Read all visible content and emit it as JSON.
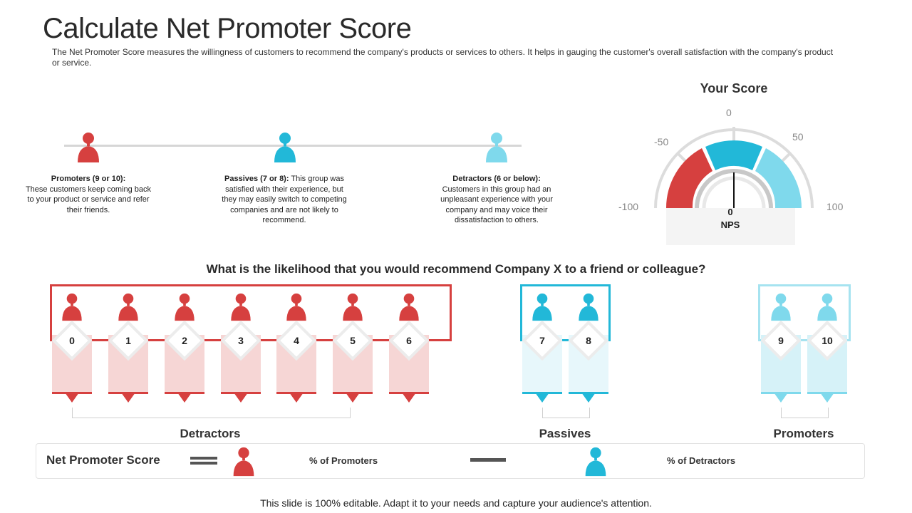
{
  "title": "Calculate Net Promoter Score",
  "intro": "The Net Promoter Score measures the willingness of customers to recommend the company's products or services to others. It helps in gauging the customer's overall  satisfaction with the company's product or service.",
  "colors": {
    "detractor": "#d6403f",
    "passive": "#22b8d8",
    "promoter": "#7fd9ec",
    "detractor_light": "#f6d6d5",
    "passive_light": "#e7f7fb",
    "promoter_light": "#d6f2f8"
  },
  "categories": [
    {
      "icon": "person-icon",
      "color": "#d6403f",
      "heading": "Promoters (9 or 10):",
      "body": "These customers keep coming back to your product or service and refer their friends."
    },
    {
      "icon": "person-icon",
      "color": "#22b8d8",
      "heading": "Passives (7 or 8):",
      "body": " This group was satisfied with their experience, but they may easily switch to competing companies and are not likely to recommend."
    },
    {
      "icon": "person-icon",
      "color": "#7fd9ec",
      "heading": "Detractors (6 or below):",
      "body": "Customers in this group had an unpleasant experience with your company and may voice their dissatisfaction to others."
    }
  ],
  "gauge": {
    "title": "Your Score",
    "labels": {
      "min": "-100",
      "low": "-50",
      "mid": "0",
      "high": "50",
      "max": "100"
    },
    "value": 0,
    "value_text": "0",
    "unit_text": "NPS"
  },
  "question": "What is the likelihood that you would recommend Company X to a friend or colleague?",
  "scale": {
    "detractors": [
      "0",
      "1",
      "2",
      "3",
      "4",
      "5",
      "6"
    ],
    "passives": [
      "7",
      "8"
    ],
    "promoters": [
      "9",
      "10"
    ]
  },
  "group_labels": {
    "detractors": "Detractors",
    "passives": "Passives",
    "promoters": "Promoters"
  },
  "legend": {
    "title": "Net Promoter Score",
    "promoters_label": "% of Promoters",
    "detractors_label": "% of Detractors"
  },
  "footer": "This slide is 100% editable. Adapt it to your needs and capture your audience's attention."
}
